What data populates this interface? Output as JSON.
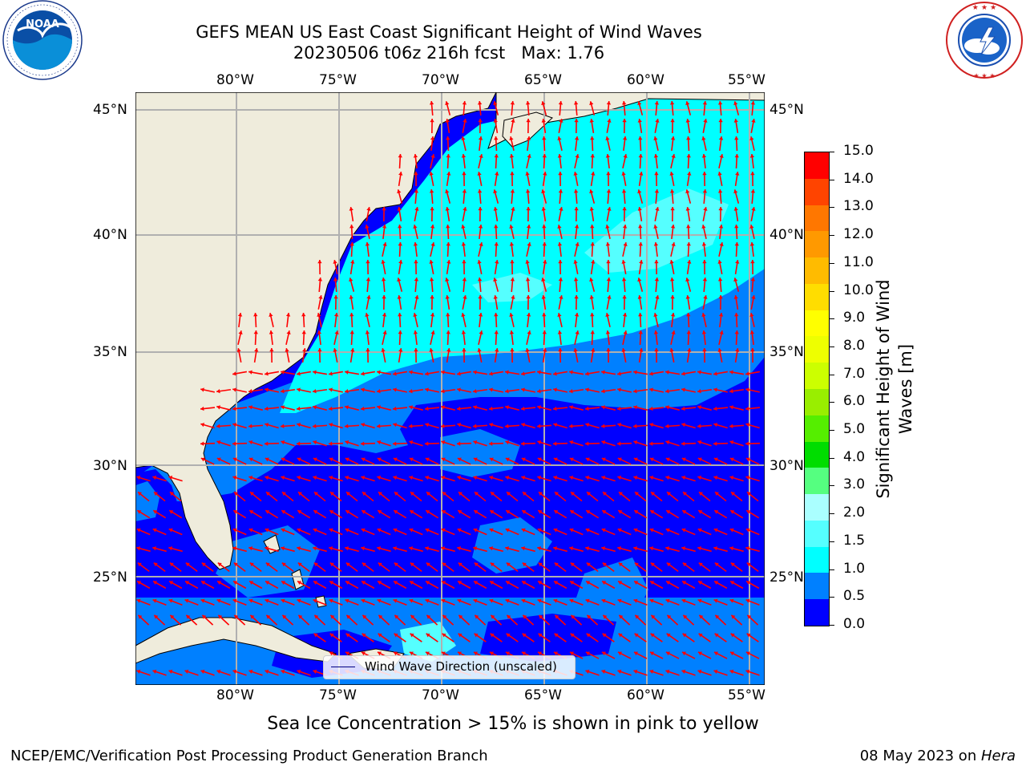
{
  "header": {
    "title_line1": "GEFS MEAN US East Coast Significant Height of Wind Waves",
    "title_line2": "20230506 t06z 216h fcst   Max: 1.76",
    "left_logo": "noaa-logo",
    "left_logo_text": "NOAA",
    "left_logo_ring_text": "NATIONAL OCEANIC AND ATMOSPHERIC ADMINISTRATION · U.S. DEPARTMENT OF COMMERCE",
    "right_logo": "nws-logo",
    "right_logo_ring_text": "NATIONAL WEATHER SERVICE"
  },
  "map": {
    "lon_labels": [
      "80°W",
      "75°W",
      "70°W",
      "65°W",
      "60°W",
      "55°W"
    ],
    "lat_labels": [
      "45°N",
      "40°N",
      "35°N",
      "30°N",
      "25°N"
    ],
    "legend_label": "Wind Wave Direction (unscaled)",
    "colors": {
      "land": "#efecdc",
      "band_0_0_5": "#0000ff",
      "band_0_5_1_0": "#0080ff",
      "band_1_0_1_5": "#00ffff",
      "band_1_5_2_0": "#55ffff",
      "arrows": "#ff0000",
      "grid": "#b0b0b0"
    }
  },
  "colorbar": {
    "label": "Significant Height of Wind Waves [m]",
    "ticks": [
      "15.0",
      "14.0",
      "13.0",
      "12.0",
      "11.0",
      "10.0",
      "9.0",
      "8.0",
      "7.0",
      "6.0",
      "5.0",
      "4.0",
      "3.0",
      "2.0",
      "1.5",
      "1.0",
      "0.5",
      "0.0"
    ],
    "colors": [
      "#0000ff",
      "#0080ff",
      "#00ffff",
      "#55ffff",
      "#aaffff",
      "#55ff80",
      "#00dd00",
      "#55ee00",
      "#99ee00",
      "#ccff00",
      "#eeff00",
      "#ffff00",
      "#ffdd00",
      "#ffbb00",
      "#ff9900",
      "#ff7700",
      "#ff4400",
      "#ff0000"
    ]
  },
  "footer": {
    "note": "Sea Ice Concentration > 15% is shown in pink to yellow",
    "left": "NCEP/EMC/Verification Post Processing Product Generation Branch",
    "right_date": "08 May 2023 on ",
    "right_host": "Hera"
  }
}
